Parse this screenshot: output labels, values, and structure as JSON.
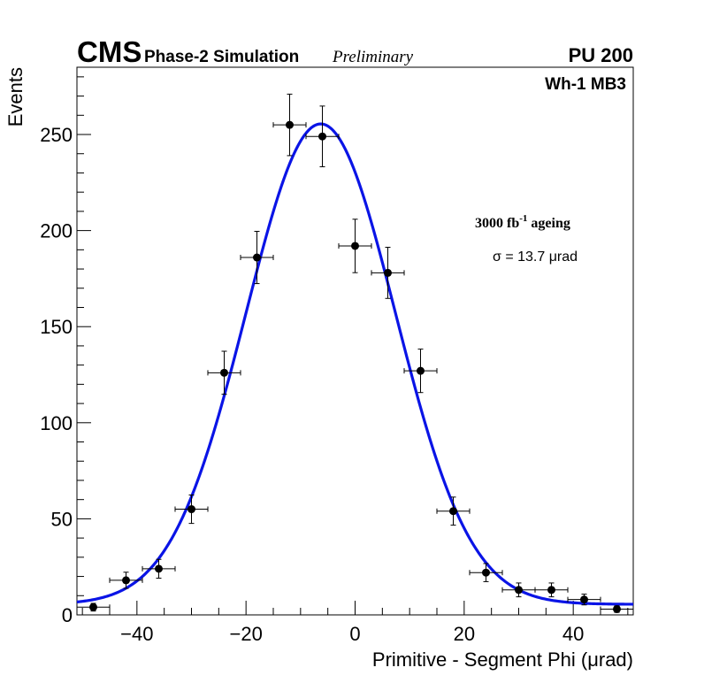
{
  "chart_data": {
    "type": "scatter",
    "experiment": "CMS",
    "title_main": "Phase-2 Simulation",
    "title_status": "Preliminary",
    "pileup": "PU 200",
    "station": "Wh-1 MB3",
    "ageing": {
      "base": "3000 fb",
      "exponent": "-1",
      "suffix": " ageing"
    },
    "sigma_label": "σ = 13.7 μrad",
    "xlabel": "Primitive - Segment Phi (μrad)",
    "ylabel": "Events",
    "xlim": [
      -51,
      51
    ],
    "ylim": [
      0,
      285
    ],
    "x_ticks": [
      -40,
      -20,
      0,
      20,
      40
    ],
    "x_tick_labels": [
      "−40",
      "−20",
      "0",
      "20",
      "40"
    ],
    "y_ticks": [
      0,
      50,
      100,
      150,
      200,
      250
    ],
    "y_tick_labels": [
      "0",
      "50",
      "100",
      "150",
      "200",
      "250"
    ],
    "bin_half_width": 3,
    "series": [
      {
        "name": "data",
        "x": [
          -48,
          -42,
          -36,
          -30,
          -24,
          -18,
          -12,
          -6,
          0,
          6,
          12,
          18,
          24,
          30,
          36,
          42,
          48
        ],
        "values": [
          4,
          18,
          24,
          55,
          126,
          186,
          255,
          249,
          192,
          178,
          127,
          54,
          22,
          13,
          13,
          8,
          3
        ],
        "errors": [
          2,
          4.2,
          4.9,
          7.4,
          11.2,
          13.6,
          16,
          15.8,
          13.9,
          13.3,
          11.3,
          7.3,
          4.7,
          3.6,
          3.6,
          2.8,
          1.7
        ]
      },
      {
        "name": "fit",
        "type": "gaussian",
        "amplitude": 250,
        "mean": -6.3,
        "sigma": 13.7,
        "constant": 5.5
      }
    ]
  }
}
